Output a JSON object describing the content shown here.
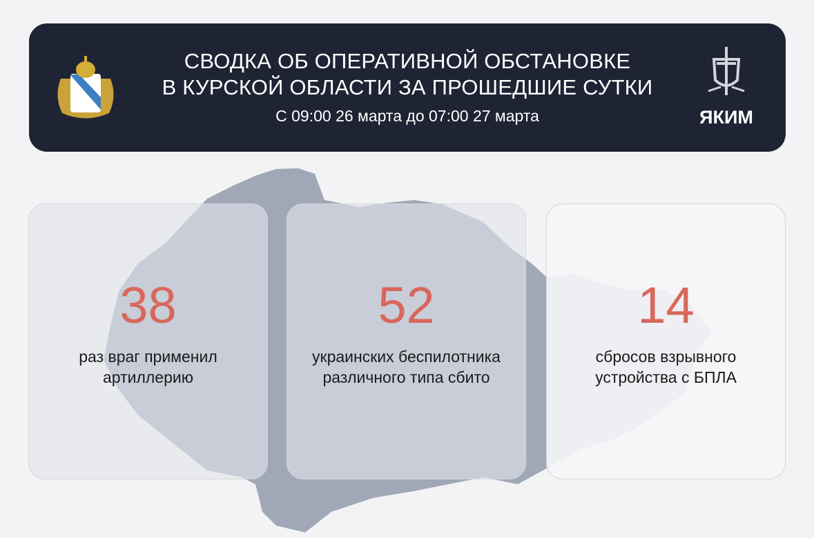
{
  "header": {
    "title_line1": "СВОДКА ОБ ОПЕРАТИВНОЙ ОБСТАНОВКЕ",
    "title_line2": "В КУРСКОЙ ОБЛАСТИ ЗА ПРОШЕДШИЕ СУТКИ",
    "subtitle": "С 09:00 26 марта до 07:00 27 марта",
    "logo_text": "ЯКИМ"
  },
  "colors": {
    "header_bg": "#1e2434",
    "accent_number": "#d8675c",
    "map": "#9ea6b5"
  },
  "stats": [
    {
      "value": "38",
      "line1": "раз враг применил",
      "line2": "артиллерию"
    },
    {
      "value": "52",
      "line1": "украинских беспилотника",
      "line2": "различного типа сбито"
    },
    {
      "value": "14",
      "line1": "сбросов взрывного",
      "line2": "устройства с БПЛА"
    }
  ]
}
